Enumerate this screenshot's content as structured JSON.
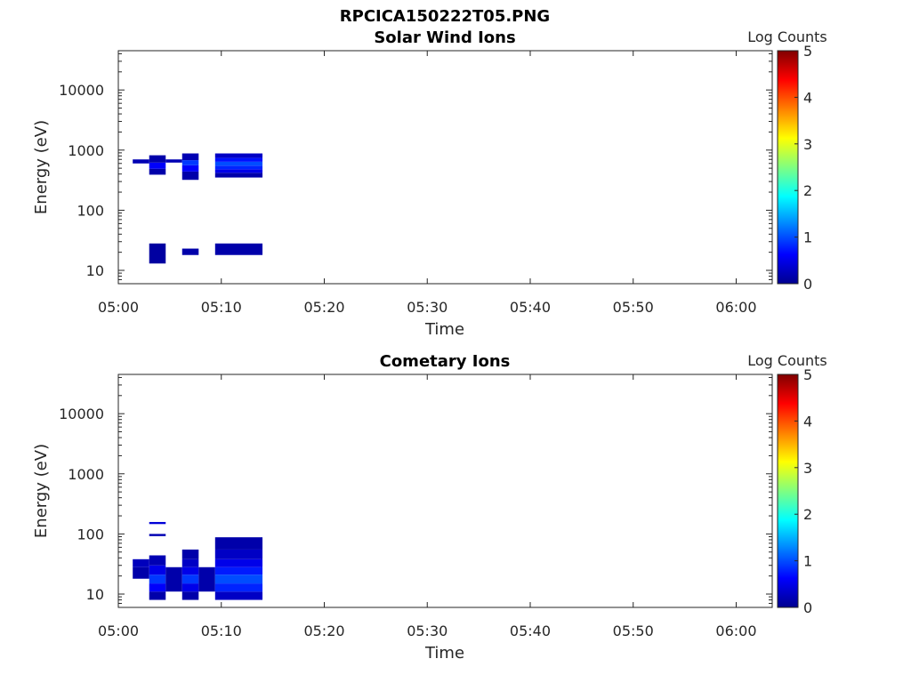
{
  "figure_title": "RPCICA150222T05.PNG",
  "colors": {
    "axes": "#262626",
    "background": "#ffffff",
    "colormap": [
      "#00008f",
      "#0000ff",
      "#0080ff",
      "#00ffff",
      "#80ff80",
      "#ffff00",
      "#ff8000",
      "#ff0000",
      "#800000"
    ]
  },
  "chart_data": [
    {
      "type": "heatmap",
      "title": "Solar Wind Ions",
      "xlabel": "Time",
      "ylabel": "Energy (eV)",
      "colorbar_label": "Log Counts",
      "x_tick_labels": [
        "05:00",
        "05:10",
        "05:20",
        "05:30",
        "05:40",
        "05:50",
        "06:00"
      ],
      "x_range_min": [
        0,
        63.5
      ],
      "y_tick_labels": [
        "10",
        "100",
        "1000",
        "10000"
      ],
      "y_log_range": [
        6,
        45000
      ],
      "y_scale": "log",
      "colorbar_tick_labels": [
        "0",
        "1",
        "2",
        "3",
        "4",
        "5"
      ],
      "colorbar_range": [
        0,
        5
      ],
      "cells": [
        {
          "t0": 1.4,
          "t1": 3.0,
          "e0": 600,
          "e1": 700,
          "v": 0.2
        },
        {
          "t0": 3.0,
          "t1": 4.6,
          "e0": 390,
          "e1": 490,
          "v": 0.15
        },
        {
          "t0": 3.0,
          "t1": 4.6,
          "e0": 490,
          "e1": 620,
          "v": 0.6
        },
        {
          "t0": 3.0,
          "t1": 4.6,
          "e0": 620,
          "e1": 820,
          "v": 0.15
        },
        {
          "t0": 4.6,
          "t1": 6.2,
          "e0": 620,
          "e1": 700,
          "v": 0.2
        },
        {
          "t0": 6.2,
          "t1": 7.8,
          "e0": 320,
          "e1": 440,
          "v": 0.15
        },
        {
          "t0": 6.2,
          "t1": 7.8,
          "e0": 440,
          "e1": 560,
          "v": 0.6
        },
        {
          "t0": 6.2,
          "t1": 7.8,
          "e0": 560,
          "e1": 680,
          "v": 0.9
        },
        {
          "t0": 6.2,
          "t1": 7.8,
          "e0": 680,
          "e1": 880,
          "v": 0.2
        },
        {
          "t0": 9.4,
          "t1": 14.0,
          "e0": 350,
          "e1": 420,
          "v": 0.15
        },
        {
          "t0": 9.4,
          "t1": 14.0,
          "e0": 420,
          "e1": 480,
          "v": 0.5
        },
        {
          "t0": 9.4,
          "t1": 14.0,
          "e0": 480,
          "e1": 550,
          "v": 0.8
        },
        {
          "t0": 9.4,
          "t1": 14.0,
          "e0": 550,
          "e1": 640,
          "v": 1.0
        },
        {
          "t0": 9.4,
          "t1": 14.0,
          "e0": 640,
          "e1": 740,
          "v": 0.7
        },
        {
          "t0": 9.4,
          "t1": 14.0,
          "e0": 740,
          "e1": 880,
          "v": 0.3
        },
        {
          "t0": 3.0,
          "t1": 4.6,
          "e0": 13,
          "e1": 28,
          "v": 0.1
        },
        {
          "t0": 6.2,
          "t1": 7.8,
          "e0": 18,
          "e1": 23,
          "v": 0.15
        },
        {
          "t0": 9.4,
          "t1": 14.0,
          "e0": 18,
          "e1": 28,
          "v": 0.15
        }
      ]
    },
    {
      "type": "heatmap",
      "title": "Cometary Ions",
      "xlabel": "Time",
      "ylabel": "Energy (eV)",
      "colorbar_label": "Log Counts",
      "x_tick_labels": [
        "05:00",
        "05:10",
        "05:20",
        "05:30",
        "05:40",
        "05:50",
        "06:00"
      ],
      "x_range_min": [
        0,
        63.5
      ],
      "y_tick_labels": [
        "10",
        "100",
        "1000",
        "10000"
      ],
      "y_log_range": [
        6,
        45000
      ],
      "y_scale": "log",
      "colorbar_tick_labels": [
        "0",
        "1",
        "2",
        "3",
        "4",
        "5"
      ],
      "colorbar_range": [
        0,
        5
      ],
      "cells": [
        {
          "t0": 3.0,
          "t1": 4.6,
          "e0": 146,
          "e1": 158,
          "v": 0.4
        },
        {
          "t0": 3.0,
          "t1": 4.6,
          "e0": 92,
          "e1": 100,
          "v": 0.2
        },
        {
          "t0": 1.4,
          "t1": 3.0,
          "e0": 18,
          "e1": 28,
          "v": 0.15
        },
        {
          "t0": 1.4,
          "t1": 3.0,
          "e0": 28,
          "e1": 38,
          "v": 0.25
        },
        {
          "t0": 3.0,
          "t1": 4.6,
          "e0": 8,
          "e1": 11,
          "v": 0.15
        },
        {
          "t0": 3.0,
          "t1": 4.6,
          "e0": 11,
          "e1": 15,
          "v": 0.6
        },
        {
          "t0": 3.0,
          "t1": 4.6,
          "e0": 15,
          "e1": 21,
          "v": 0.9
        },
        {
          "t0": 3.0,
          "t1": 4.6,
          "e0": 21,
          "e1": 30,
          "v": 0.5
        },
        {
          "t0": 3.0,
          "t1": 4.6,
          "e0": 30,
          "e1": 44,
          "v": 0.2
        },
        {
          "t0": 4.6,
          "t1": 6.2,
          "e0": 11,
          "e1": 28,
          "v": 0.15
        },
        {
          "t0": 6.2,
          "t1": 7.8,
          "e0": 8,
          "e1": 11,
          "v": 0.15
        },
        {
          "t0": 6.2,
          "t1": 7.8,
          "e0": 11,
          "e1": 15,
          "v": 0.5
        },
        {
          "t0": 6.2,
          "t1": 7.8,
          "e0": 15,
          "e1": 21,
          "v": 0.9
        },
        {
          "t0": 6.2,
          "t1": 7.8,
          "e0": 21,
          "e1": 28,
          "v": 0.5
        },
        {
          "t0": 6.2,
          "t1": 7.8,
          "e0": 28,
          "e1": 38,
          "v": 0.3
        },
        {
          "t0": 6.2,
          "t1": 7.8,
          "e0": 38,
          "e1": 55,
          "v": 0.15
        },
        {
          "t0": 7.8,
          "t1": 9.4,
          "e0": 11,
          "e1": 28,
          "v": 0.15
        },
        {
          "t0": 9.4,
          "t1": 14.0,
          "e0": 8,
          "e1": 11,
          "v": 0.3
        },
        {
          "t0": 9.4,
          "t1": 14.0,
          "e0": 11,
          "e1": 15,
          "v": 0.8
        },
        {
          "t0": 9.4,
          "t1": 14.0,
          "e0": 15,
          "e1": 21,
          "v": 1.0
        },
        {
          "t0": 9.4,
          "t1": 14.0,
          "e0": 21,
          "e1": 28,
          "v": 0.75
        },
        {
          "t0": 9.4,
          "t1": 14.0,
          "e0": 28,
          "e1": 38,
          "v": 0.5
        },
        {
          "t0": 9.4,
          "t1": 14.0,
          "e0": 38,
          "e1": 55,
          "v": 0.3
        },
        {
          "t0": 9.4,
          "t1": 14.0,
          "e0": 55,
          "e1": 88,
          "v": 0.15
        }
      ]
    }
  ]
}
